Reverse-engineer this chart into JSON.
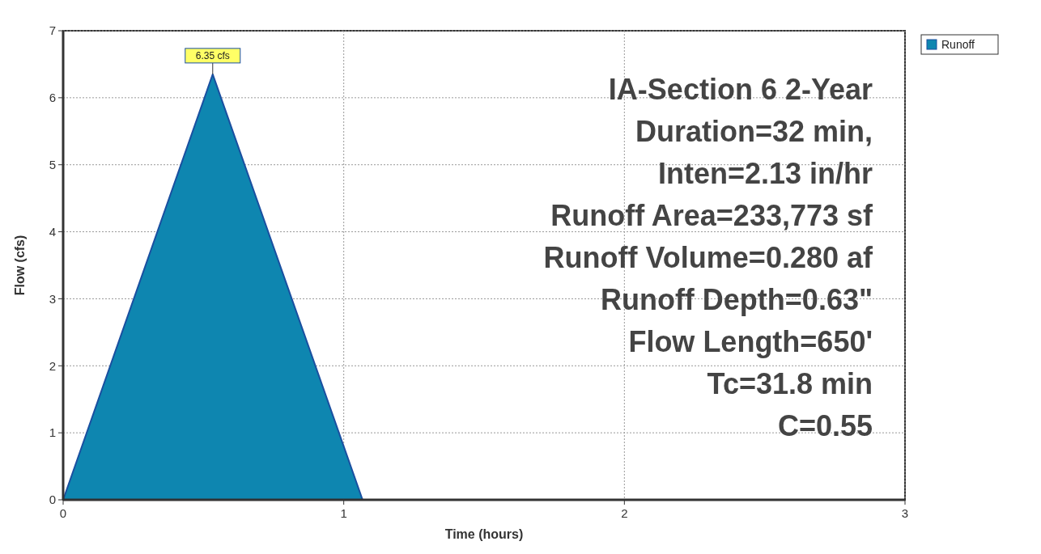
{
  "chart_data": {
    "type": "area",
    "xlabel": "Time  (hours)",
    "ylabel": "Flow  (cfs)",
    "series": [
      {
        "name": "Runoff",
        "color": "#0e86b0",
        "x": [
          0,
          0.533,
          1.067,
          3
        ],
        "values": [
          0,
          6.35,
          0,
          0
        ]
      }
    ],
    "xlim": [
      0,
      3
    ],
    "xticks": [
      0,
      1,
      2,
      3
    ],
    "ylim": [
      0,
      7
    ],
    "yticks": [
      0,
      1,
      2,
      3,
      4,
      5,
      6,
      7
    ],
    "grid": true,
    "legend": "top right",
    "annotations": [
      {
        "text": "6.35 cfs",
        "x": 0.533,
        "y": 6.35
      },
      "IA-Section 6 2-Year",
      "Duration=32 min,",
      "Inten=2.13 in/hr",
      "Runoff Area=233,773 sf",
      "Runoff Volume=0.280 af",
      "Runoff Depth=0.63\"",
      "Flow Length=650'",
      "Tc=31.8 min",
      "C=0.55"
    ]
  }
}
